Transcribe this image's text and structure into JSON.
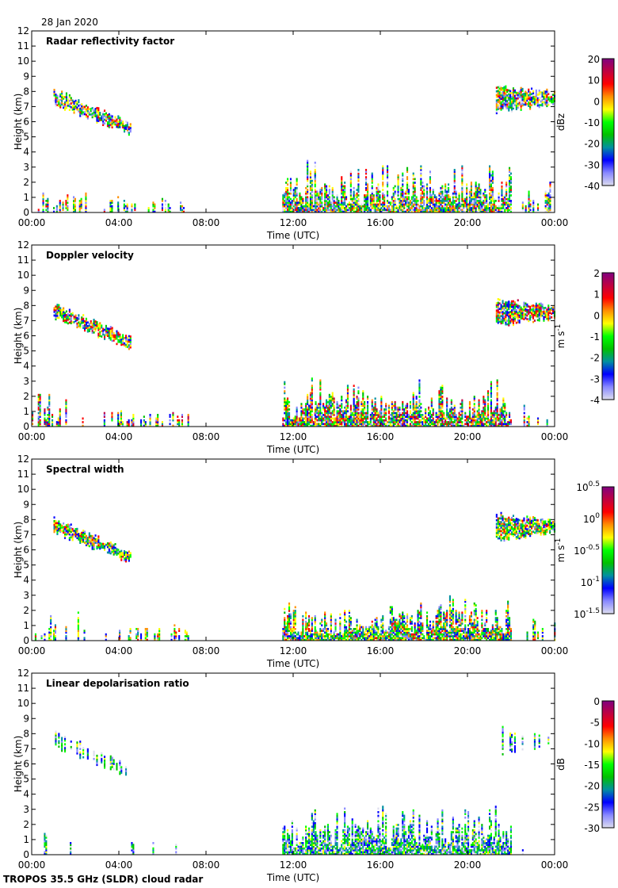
{
  "date": "28 Jan 2020",
  "footer": "TROPOS 35.5 GHz (SLDR) cloud radar",
  "chart_data": [
    {
      "type": "heatmap",
      "title": "Radar reflectivity factor",
      "xlabel": "Time (UTC)",
      "ylabel": "Height (km)",
      "xticks": [
        "00:00",
        "04:00",
        "08:00",
        "12:00",
        "16:00",
        "20:00",
        "00:00"
      ],
      "xlim_hours": [
        0,
        24
      ],
      "yticks": [
        "0",
        "1",
        "2",
        "3",
        "4",
        "5",
        "6",
        "7",
        "8",
        "9",
        "10",
        "11",
        "12"
      ],
      "ylim": [
        0,
        12
      ],
      "colorbar": {
        "label": "dBz",
        "ticks": [
          "20",
          "10",
          "0",
          "-10",
          "-20",
          "-30",
          "-40"
        ],
        "range": [
          -40,
          20
        ],
        "scale": "linear"
      },
      "field_range": [
        -40,
        10
      ]
    },
    {
      "type": "heatmap",
      "title": "Doppler velocity",
      "xlabel": "Time (UTC)",
      "ylabel": "Height (km)",
      "xticks": [
        "00:00",
        "04:00",
        "08:00",
        "12:00",
        "16:00",
        "20:00",
        "00:00"
      ],
      "xlim_hours": [
        0,
        24
      ],
      "yticks": [
        "0",
        "1",
        "2",
        "3",
        "4",
        "5",
        "6",
        "7",
        "8",
        "9",
        "10",
        "11",
        "12"
      ],
      "ylim": [
        0,
        12
      ],
      "colorbar": {
        "label": "m s",
        "label_sup": "-1",
        "ticks": [
          "2",
          "1",
          "0",
          "-1",
          "-2",
          "-3",
          "-4"
        ],
        "range": [
          -4,
          2
        ],
        "scale": "linear"
      },
      "field_range": [
        -3.5,
        1.5
      ]
    },
    {
      "type": "heatmap",
      "title": "Spectral width",
      "xlabel": "Time (UTC)",
      "ylabel": "Height (km)",
      "xticks": [
        "00:00",
        "04:00",
        "08:00",
        "12:00",
        "16:00",
        "20:00",
        "00:00"
      ],
      "xlim_hours": [
        0,
        24
      ],
      "yticks": [
        "0",
        "1",
        "2",
        "3",
        "4",
        "5",
        "6",
        "7",
        "8",
        "9",
        "10",
        "11",
        "12"
      ],
      "ylim": [
        0,
        12
      ],
      "colorbar": {
        "label": "m s",
        "label_sup": "-1",
        "ticks": [
          [
            "10",
            "0.5"
          ],
          [
            "10",
            "0"
          ],
          [
            "10",
            "-0.5"
          ],
          [
            "10",
            "-1"
          ],
          [
            "10",
            "-1.5"
          ]
        ],
        "range": [
          -1.5,
          0.5
        ],
        "scale": "log10"
      },
      "field_range": [
        -1.3,
        0.1
      ]
    },
    {
      "type": "heatmap",
      "title": "Linear depolarisation ratio",
      "xlabel": "Time (UTC)",
      "ylabel": "Height (km)",
      "xticks": [
        "00:00",
        "04:00",
        "08:00",
        "12:00",
        "16:00",
        "20:00",
        "00:00"
      ],
      "xlim_hours": [
        0,
        24
      ],
      "yticks": [
        "0",
        "1",
        "2",
        "3",
        "4",
        "5",
        "6",
        "7",
        "8",
        "9",
        "10",
        "11",
        "12"
      ],
      "ylim": [
        0,
        12
      ],
      "colorbar": {
        "label": "dB",
        "ticks": [
          "0",
          "-5",
          "-10",
          "-15",
          "-20",
          "-25",
          "-30"
        ],
        "range": [
          -30,
          0
        ],
        "scale": "linear"
      },
      "field_range": [
        -30,
        -12
      ]
    }
  ],
  "echo_regions": [
    {
      "t": [
        1.0,
        4.5
      ],
      "top": [
        8.2,
        6.0
      ],
      "base": [
        7.0,
        5.0
      ],
      "kind": "ice"
    },
    {
      "t": [
        21.3,
        24.0
      ],
      "top": [
        8.5,
        8.0
      ],
      "base": [
        6.5,
        7.0
      ],
      "kind": "ice"
    },
    {
      "t": [
        0.0,
        2.5
      ],
      "top": [
        2.2,
        2.2
      ],
      "base": [
        0,
        0
      ],
      "kind": "low_sparse"
    },
    {
      "t": [
        3.3,
        7.2
      ],
      "top": [
        1.2,
        1.2
      ],
      "base": [
        0,
        0
      ],
      "kind": "low_sparse"
    },
    {
      "t": [
        11.5,
        13.0
      ],
      "top": [
        3.6,
        3.6
      ],
      "base": [
        0,
        0
      ],
      "kind": "low"
    },
    {
      "t": [
        13.0,
        22.0
      ],
      "top": [
        3.2,
        3.2
      ],
      "base": [
        0,
        0
      ],
      "kind": "low"
    },
    {
      "t": [
        22.5,
        24.0
      ],
      "top": [
        2.2,
        2.2
      ],
      "base": [
        0,
        0
      ],
      "kind": "low_sparse"
    }
  ],
  "colors": {
    "colormap": [
      "#ddddee",
      "#8888ff",
      "#0000ff",
      "#0090a0",
      "#00c000",
      "#00ff00",
      "#ffff00",
      "#ff9000",
      "#ff0000",
      "#c00040",
      "#800080"
    ]
  }
}
